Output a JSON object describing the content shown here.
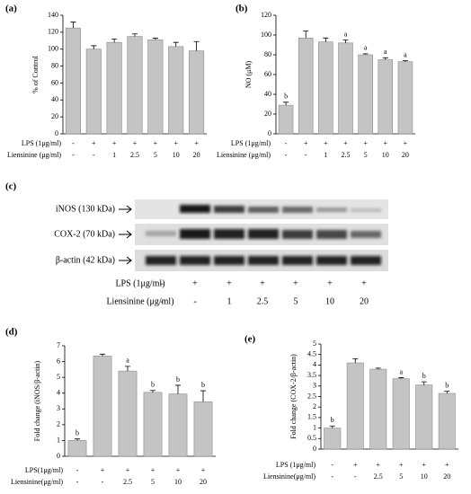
{
  "chart_data": [
    {
      "type": "bar",
      "panel": "(a)",
      "ylabel": "% of Control",
      "categories": [
        null,
        null,
        null,
        null,
        null,
        null,
        null
      ],
      "values": [
        125,
        100,
        108,
        115,
        111,
        103,
        98
      ],
      "errors": [
        7,
        4,
        4,
        3,
        2,
        5,
        11
      ],
      "annotations": [
        null,
        null,
        null,
        null,
        null,
        null,
        null
      ],
      "row_labels": [
        "LPS (1μg/ml)",
        "Liensinine (μg/ml)"
      ],
      "rows": [
        [
          "-",
          "+",
          "+",
          "+",
          "+",
          "+",
          "+"
        ],
        [
          "-",
          "-",
          "1",
          "2.5",
          "5",
          "10",
          "20"
        ]
      ],
      "ylim": [
        0,
        140
      ],
      "yticks": [
        0,
        20,
        40,
        60,
        80,
        100,
        120,
        140
      ],
      "color": "#c4c4c4"
    },
    {
      "type": "bar",
      "panel": "(b)",
      "ylabel": "NO (μM)",
      "categories": [
        null,
        null,
        null,
        null,
        null,
        null,
        null
      ],
      "values": [
        29,
        97,
        93,
        92,
        80,
        75,
        73
      ],
      "errors": [
        3,
        7,
        4,
        3,
        1,
        2,
        1
      ],
      "annotations": [
        "b",
        null,
        null,
        "a",
        "a",
        "a",
        "a"
      ],
      "row_labels": [
        "LPS (1μg/ml)",
        "Liensinine (μg/ml)"
      ],
      "rows": [
        [
          "-",
          "+",
          "+",
          "+",
          "+",
          "+",
          "+"
        ],
        [
          "-",
          "-",
          "1",
          "2.5",
          "5",
          "10",
          "20"
        ]
      ],
      "ylim": [
        0,
        120
      ],
      "yticks": [
        0,
        20,
        40,
        60,
        80,
        100,
        120
      ],
      "color": "#c4c4c4"
    },
    {
      "type": "bar",
      "panel": "(d)",
      "ylabel": "Fold change (iNOS/β-actin)",
      "categories": [
        null,
        null,
        null,
        null,
        null,
        null
      ],
      "values": [
        1.0,
        6.35,
        5.4,
        4.05,
        3.95,
        3.45
      ],
      "errors": [
        0.1,
        0.12,
        0.3,
        0.12,
        0.55,
        0.7
      ],
      "annotations": [
        "b",
        null,
        "a",
        "b",
        "b",
        "b"
      ],
      "row_labels": [
        "LPS(1μg/ml)",
        "Liensinine(μg/ml)"
      ],
      "rows": [
        [
          "-",
          "+",
          "+",
          "+",
          "+",
          "+"
        ],
        [
          "-",
          "-",
          "2.5",
          "5",
          "10",
          "20"
        ]
      ],
      "ylim": [
        0,
        7
      ],
      "yticks": [
        0,
        1,
        2,
        3,
        4,
        5,
        6,
        7
      ],
      "color": "#c4c4c4"
    },
    {
      "type": "bar",
      "panel": "(e)",
      "ylabel": "Fold change (COX-2/β-actin)",
      "categories": [
        null,
        null,
        null,
        null,
        null,
        null
      ],
      "values": [
        1.0,
        4.1,
        3.8,
        3.35,
        3.05,
        2.65
      ],
      "errors": [
        0.1,
        0.2,
        0.05,
        0.05,
        0.15,
        0.1
      ],
      "annotations": [
        "b",
        null,
        null,
        "a",
        "b",
        "b"
      ],
      "row_labels": [
        "LPS (1μg/ml)",
        "Liensinine(μg/ml)"
      ],
      "rows": [
        [
          "-",
          "+",
          "+",
          "+",
          "+",
          "+"
        ],
        [
          "-",
          "-",
          "2.5",
          "5",
          "10",
          "20"
        ]
      ],
      "ylim": [
        0,
        5
      ],
      "yticks": [
        0,
        0.5,
        1,
        1.5,
        2,
        2.5,
        3,
        3.5,
        4,
        4.5,
        5
      ],
      "color": "#c4c4c4"
    }
  ],
  "blot": {
    "panel": "(c)",
    "bands": [
      "iNOS (130 kDa)",
      "COX-2 (70 kDa)",
      "β-actin (42 kDa)"
    ],
    "row_labels": [
      "LPS (1μg/ml)",
      "Liensinine (μg/ml)"
    ],
    "rows": [
      [
        "-",
        "+",
        "+",
        "+",
        "+",
        "+",
        "+"
      ],
      [
        "-",
        "-",
        "1",
        "2.5",
        "5",
        "10",
        "20"
      ]
    ]
  }
}
